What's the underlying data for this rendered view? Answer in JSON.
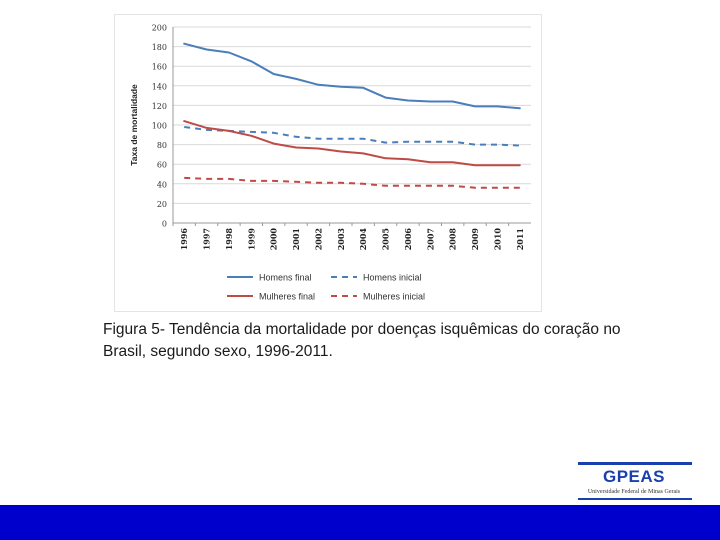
{
  "caption": "Figura 5- Tendência da mortalidade por doenças isquêmicas do coração no Brasil, segundo sexo, 1996-2011.",
  "logo": {
    "name": "GPEAS",
    "subtitle": "Universidade Federal de Minas Gerais"
  },
  "colors": {
    "men": "#4a7ebb",
    "women": "#be4b48",
    "footer": "#0000cc",
    "logo": "#1a3fae"
  },
  "chart_data": {
    "type": "line",
    "title": "",
    "xlabel": "",
    "ylabel": "Taxa de mortalidade",
    "ylim": [
      0,
      200
    ],
    "yticks": [
      "0",
      "20",
      "40",
      "60",
      "80",
      "100",
      "120",
      "140",
      "160",
      "180",
      "200"
    ],
    "categories": [
      "1996",
      "1997",
      "1998",
      "1999",
      "2000",
      "2001",
      "2002",
      "2003",
      "2004",
      "2005",
      "2006",
      "2007",
      "2008",
      "2009",
      "2010",
      "2011"
    ],
    "grid": true,
    "legend_position": "bottom",
    "series": [
      {
        "name": "Homens final",
        "style": "solid",
        "color": "#4a7ebb",
        "values": [
          183,
          177,
          174,
          165,
          152,
          147,
          141,
          139,
          138,
          128,
          125,
          124,
          124,
          119,
          119,
          117
        ]
      },
      {
        "name": "Homens inicial",
        "style": "dashed",
        "color": "#4a7ebb",
        "values": [
          98,
          95,
          94,
          93,
          92,
          88,
          86,
          86,
          86,
          82,
          83,
          83,
          83,
          80,
          80,
          79
        ]
      },
      {
        "name": "Mulheres final",
        "style": "solid",
        "color": "#be4b48",
        "values": [
          104,
          97,
          94,
          89,
          81,
          77,
          76,
          73,
          71,
          66,
          65,
          62,
          62,
          59,
          59,
          59
        ]
      },
      {
        "name": "Mulheres inicial",
        "style": "dashed",
        "color": "#be4b48",
        "values": [
          46,
          45,
          45,
          43,
          43,
          42,
          41,
          41,
          40,
          38,
          38,
          38,
          38,
          36,
          36,
          36
        ]
      }
    ]
  }
}
